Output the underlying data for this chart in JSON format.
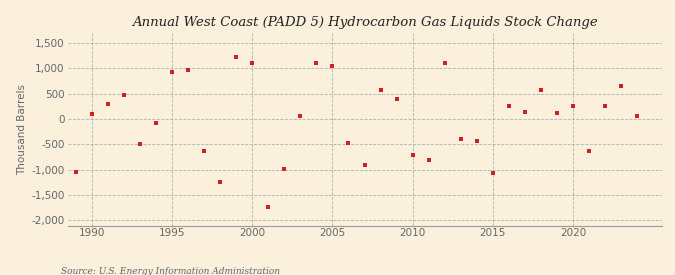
{
  "title": "Annual West Coast (PADD 5) Hydrocarbon Gas Liquids Stock Change",
  "ylabel": "Thousand Barrels",
  "source": "Source: U.S. Energy Information Administration",
  "background_color": "#faf0dc",
  "plot_background_color": "#faf0dc",
  "marker_color": "#cc2222",
  "ylim": [
    -2100,
    1700
  ],
  "yticks": [
    -2000,
    -1500,
    -1000,
    -500,
    0,
    500,
    1000,
    1500
  ],
  "xlim": [
    1988.5,
    2025.5
  ],
  "xticks": [
    1990,
    1995,
    2000,
    2005,
    2010,
    2015,
    2020
  ],
  "years": [
    1989,
    1990,
    1991,
    1992,
    1993,
    1994,
    1995,
    1996,
    1997,
    1998,
    1999,
    2000,
    2001,
    2002,
    2003,
    2004,
    2005,
    2006,
    2007,
    2008,
    2009,
    2010,
    2011,
    2012,
    2013,
    2014,
    2015,
    2016,
    2017,
    2018,
    2019,
    2020,
    2021,
    2022,
    2023,
    2024
  ],
  "values": [
    -1050,
    100,
    300,
    480,
    -490,
    -80,
    930,
    960,
    -620,
    -1250,
    1220,
    1100,
    -1730,
    -980,
    60,
    1100,
    1050,
    -480,
    -900,
    580,
    400,
    -710,
    -800,
    1100,
    -390,
    -430,
    -1060,
    260,
    150,
    580,
    130,
    250,
    -620,
    250,
    650,
    60
  ],
  "title_fontsize": 9.5,
  "tick_fontsize": 7.5,
  "ylabel_fontsize": 7.5,
  "source_fontsize": 6.5
}
